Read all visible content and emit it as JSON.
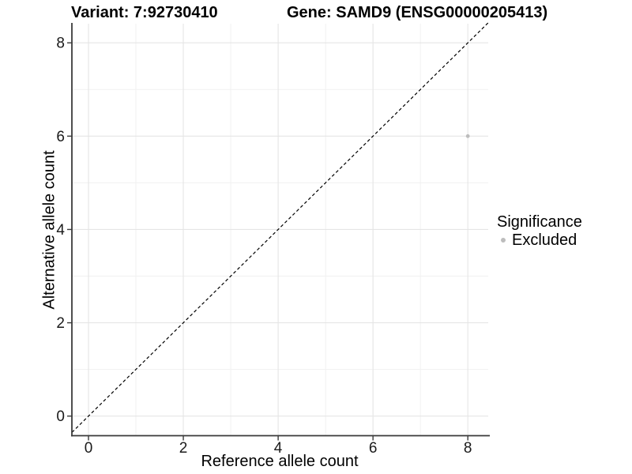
{
  "header": {
    "title_variant": "Variant: 7:92730410",
    "title_gene": "Gene: SAMD9 (ENSG00000205413)"
  },
  "chart_data": {
    "type": "scatter",
    "xlabel": "Reference allele count",
    "ylabel": "Alternative allele count",
    "xlim": [
      -0.35,
      8.43
    ],
    "ylim": [
      -0.42,
      8.41
    ],
    "xticks": [
      0,
      2,
      4,
      6,
      8
    ],
    "yticks": [
      0,
      2,
      4,
      6,
      8
    ],
    "xminor": [
      1,
      3,
      5,
      7
    ],
    "yminor": [
      1,
      3,
      5,
      7
    ],
    "grid": true,
    "identity_line": {
      "slope": 1,
      "intercept": 0,
      "style": "dashed",
      "color": "#000000"
    },
    "series": [
      {
        "name": "Excluded",
        "color": "#bdbdbd",
        "points": [
          {
            "x": 8,
            "y": 6
          }
        ]
      }
    ],
    "legend": {
      "title": "Significance",
      "position": "right",
      "entries": [
        {
          "label": "Excluded",
          "color": "#bdbdbd"
        }
      ]
    },
    "colors": {
      "grid_major": "#e5e5e5",
      "grid_minor": "#f1f1f1",
      "axis": "#3a3a3a",
      "tick_label": "#1a1a1a",
      "point": "#bdbdbd"
    }
  }
}
